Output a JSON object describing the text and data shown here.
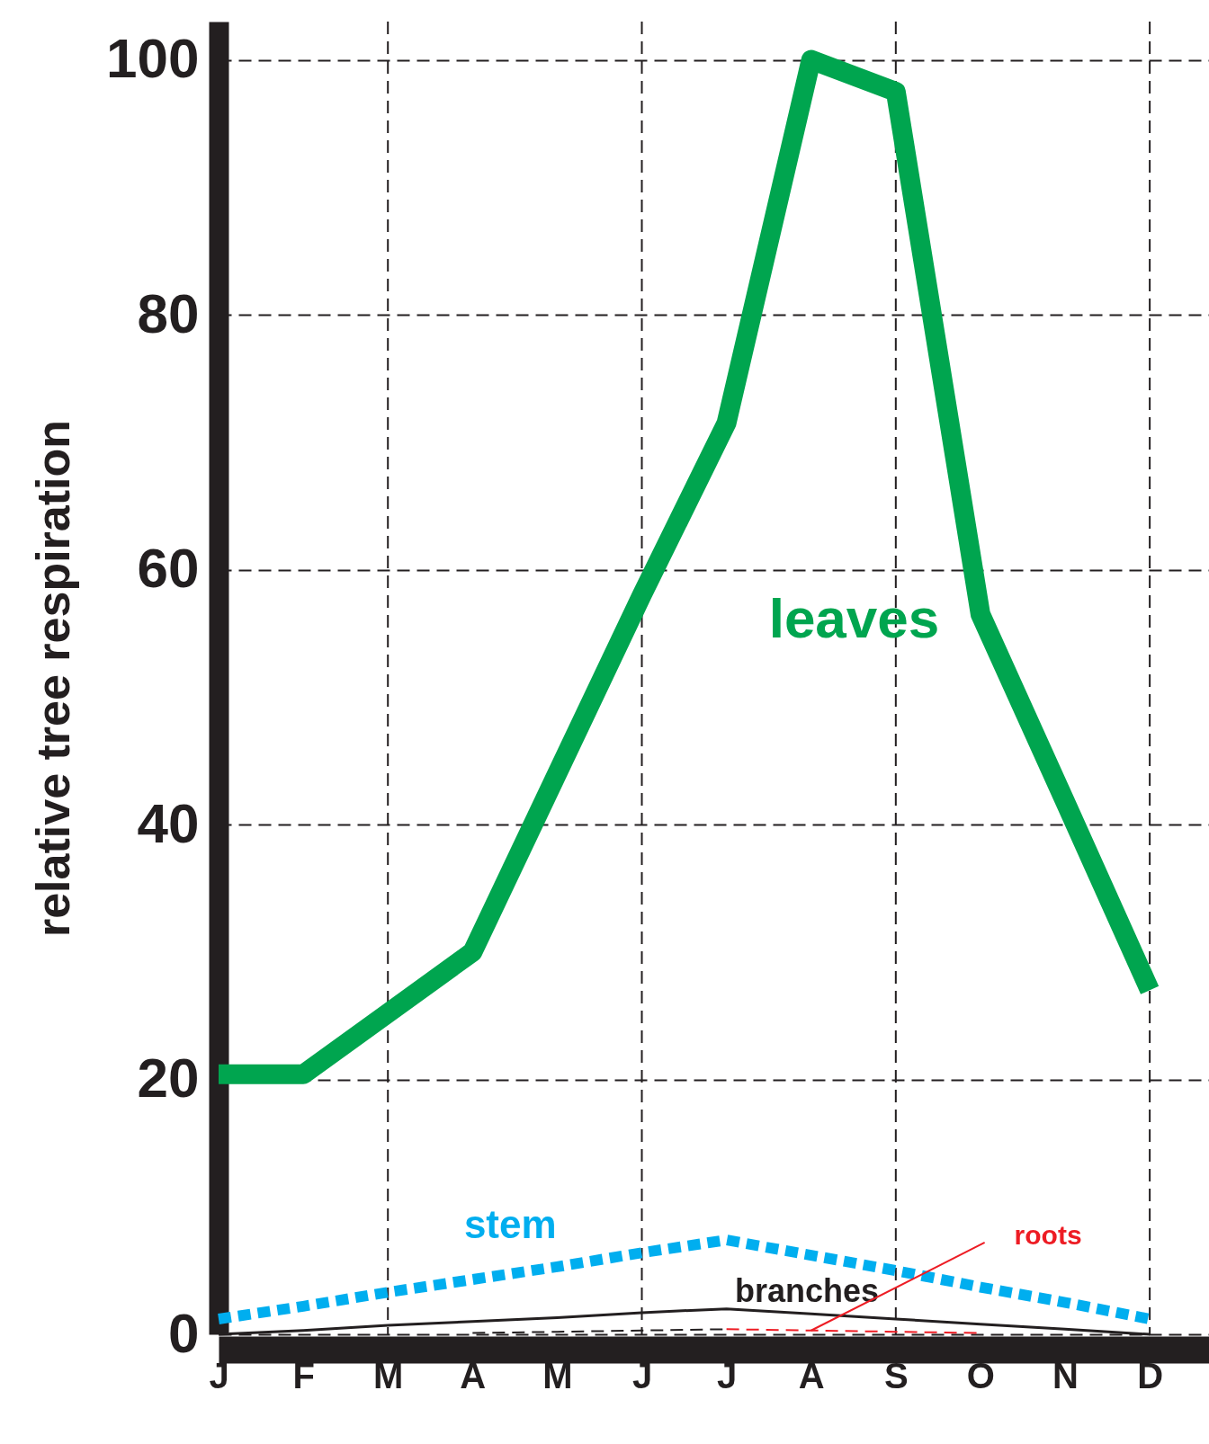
{
  "chart_data": {
    "type": "line",
    "ylabel": "relative tree respiration",
    "categories": [
      "J",
      "F",
      "M",
      "A",
      "M",
      "J",
      "J",
      "A",
      "S",
      "O",
      "N",
      "D"
    ],
    "ylim": [
      0,
      103
    ],
    "yticks": [
      0,
      20,
      40,
      60,
      80,
      100
    ],
    "grid": true,
    "legend": false,
    "marker": "none",
    "series": [
      {
        "name": "leaves",
        "color": "#00a54f",
        "line_style": "solid",
        "values": [
          20.4,
          20.4,
          25.2,
          30,
          44,
          58,
          71.5,
          100,
          97.5,
          56.5,
          41.8,
          27
        ]
      },
      {
        "name": "stem",
        "color": "#00aeef",
        "line_style": "dashed",
        "values": [
          1.2,
          2.2,
          3.3,
          4.3,
          5.3,
          6.4,
          7.4,
          6.2,
          5.0,
          3.7,
          2.5,
          1.2
        ]
      },
      {
        "name": "branches",
        "color": "#231f20",
        "line_style": "solid",
        "values": [
          0,
          0.3,
          0.7,
          1,
          1.3,
          1.7,
          2,
          1.6,
          1.2,
          0.8,
          0.4,
          0
        ]
      },
      {
        "color": "#231f20",
        "line_style": "dashed",
        "values": [
          null,
          null,
          null,
          0.1,
          0.2,
          0.3,
          0.4,
          null,
          null,
          null,
          null,
          null
        ]
      },
      {
        "name": "roots",
        "color": "#ed1c24",
        "line_style": "dashed",
        "values": [
          null,
          null,
          null,
          null,
          null,
          null,
          0.4,
          0.3,
          0.2,
          0.1,
          null,
          null
        ]
      }
    ]
  }
}
